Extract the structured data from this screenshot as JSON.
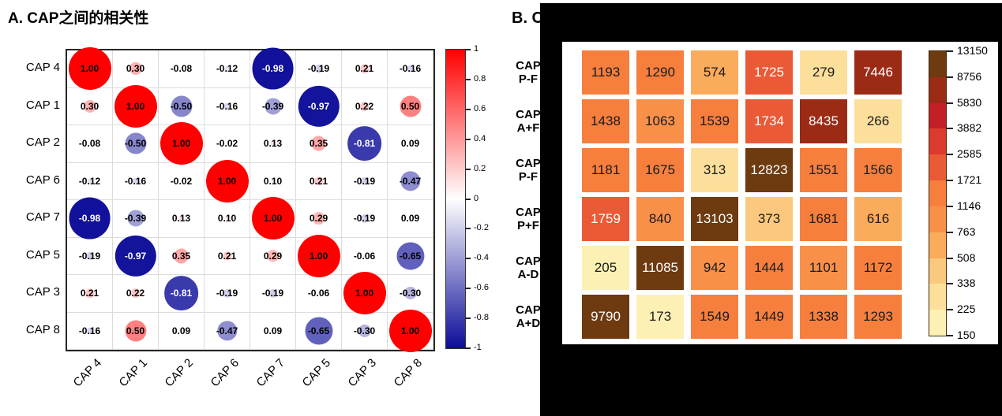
{
  "panel_a": {
    "title": "A. CAP之间的相关性"
  },
  "panel_b": {
    "title_visible": "B. C"
  },
  "chart_data": [
    {
      "type": "heatmap",
      "subtype": "correlation-matrix-circles",
      "title": "A. CAP之间的相关性",
      "x_categories": [
        "CAP 4",
        "CAP 1",
        "CAP 2",
        "CAP 6",
        "CAP 7",
        "CAP 5",
        "CAP 3",
        "CAP 8"
      ],
      "y_categories": [
        "CAP 4",
        "CAP 1",
        "CAP 2",
        "CAP 6",
        "CAP 7",
        "CAP 5",
        "CAP 3",
        "CAP 8"
      ],
      "values": [
        [
          1.0,
          0.3,
          -0.08,
          -0.12,
          -0.98,
          -0.19,
          0.21,
          -0.16
        ],
        [
          0.3,
          1.0,
          -0.5,
          -0.16,
          -0.39,
          -0.97,
          0.22,
          0.5
        ],
        [
          -0.08,
          -0.5,
          1.0,
          -0.02,
          0.13,
          0.35,
          -0.81,
          0.09
        ],
        [
          -0.12,
          -0.16,
          -0.02,
          1.0,
          0.1,
          0.21,
          -0.19,
          -0.47
        ],
        [
          -0.98,
          -0.39,
          0.13,
          0.1,
          1.0,
          0.29,
          -0.19,
          0.09
        ],
        [
          -0.19,
          -0.97,
          0.35,
          0.21,
          0.29,
          1.0,
          -0.06,
          -0.65
        ],
        [
          0.21,
          0.22,
          -0.81,
          -0.19,
          -0.19,
          -0.06,
          1.0,
          -0.3
        ],
        [
          -0.16,
          0.5,
          0.09,
          -0.47,
          0.09,
          -0.65,
          -0.3,
          1.0
        ]
      ],
      "value_range": [
        -1,
        1
      ],
      "grid": true,
      "legend_position": "right",
      "colorbar": {
        "ticks": [
          "1",
          "0.8",
          "0.6",
          "0.4",
          "0.2",
          "0",
          "-0.2",
          "-0.4",
          "-0.6",
          "-0.8",
          "-1"
        ],
        "positive_color": "#FF0000",
        "zero_color": "#FFFFFF",
        "negative_color": "#0C0C99"
      }
    },
    {
      "type": "heatmap",
      "title_visible": "B. C",
      "y_categories_visible": [
        [
          "CAP",
          "P-F"
        ],
        [
          "CAP",
          "A+F"
        ],
        [
          "CAP",
          "P-F"
        ],
        [
          "CAP",
          "P+F"
        ],
        [
          "CAP",
          "A-D"
        ],
        [
          "CAP",
          "A+D"
        ]
      ],
      "values": [
        [
          1193,
          1290,
          574,
          1725,
          279,
          7446
        ],
        [
          1438,
          1063,
          1539,
          1734,
          8435,
          266
        ],
        [
          1181,
          1675,
          313,
          12823,
          1551,
          1566
        ],
        [
          1759,
          840,
          13103,
          373,
          1681,
          616
        ],
        [
          205,
          11085,
          942,
          1444,
          1101,
          1172
        ],
        [
          9790,
          173,
          1549,
          1449,
          1338,
          1293
        ]
      ],
      "value_range": [
        150,
        13150
      ],
      "legend_position": "right",
      "colorbar": {
        "ticks": [
          "13150",
          "8756",
          "5830",
          "3882",
          "2585",
          "1721",
          "1146",
          "763",
          "508",
          "338",
          "225",
          "150"
        ],
        "thresholds": [
          225,
          338,
          508,
          763,
          1146,
          1721,
          2585,
          3882,
          5830,
          8756
        ],
        "band_colors_high_to_low": [
          "#6E3A10",
          "#9C2B16",
          "#C41E27",
          "#DC3A2C",
          "#EA5A36",
          "#F67F3E",
          "#F8904A",
          "#FAAB5C",
          "#FBC97D",
          "#FCDF9B",
          "#FDF0B5"
        ],
        "white_text_min": 1721
      }
    }
  ]
}
